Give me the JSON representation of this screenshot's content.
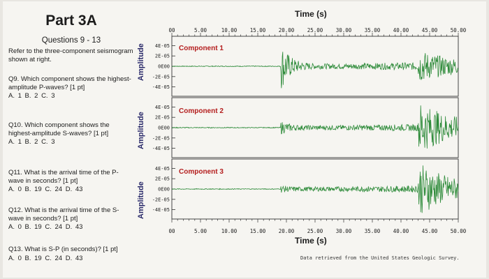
{
  "page": {
    "title": "Part 3A",
    "subtitle": "Questions 9 - 13",
    "intro": "Refer to the three-component seismogram shown at right."
  },
  "questions": [
    {
      "id": "q9",
      "text": "Q9. Which component shows the highest-amplitude P-waves? [1 pt]",
      "answers": "A. 1   B. 2   C. 3"
    },
    {
      "id": "q10",
      "text": "Q10. Which component shows the highest-amplitude S-waves? [1 pt]",
      "answers": "A. 1   B. 2   C. 3"
    },
    {
      "id": "q11",
      "text": "Q11. What is the arrival time of the P-wave in seconds? [1 pt]",
      "answers": "A. 0   B. 19   C. 24  D. 43"
    },
    {
      "id": "q12",
      "text": "Q12. What is the arrival time of the S-wave in seconds? [1 pt]",
      "answers": "A. 0   B. 19   C. 24  D. 43"
    },
    {
      "id": "q13",
      "text": "Q13. What is S-P (in seconds)? [1 pt]",
      "answers": "A. 0   B. 19   C. 24  D. 43"
    }
  ],
  "chart_data": {
    "type": "line",
    "xlabel": "Time (s)",
    "ylabel": "Amplitude",
    "xlim": [
      0,
      50
    ],
    "x_ticks": [
      "00",
      "5.00",
      "10.00",
      "15.00",
      "20.00",
      "25.00",
      "30.00",
      "35.00",
      "40.00",
      "45.00",
      "50.00"
    ],
    "y_ticks": [
      "4E-05",
      "2E-05",
      "0E00",
      "-2E-05",
      "-4E-05"
    ],
    "ylim": [
      -5e-05,
      5e-05
    ],
    "p_arrival_s": 19,
    "s_arrival_s": 43,
    "grid": false,
    "line_color": "#2e8b3a",
    "label_color": "#b41e1e",
    "series": [
      {
        "name": "Component 1",
        "p_amplitude": 4.5e-05,
        "s_amplitude": 2.5e-05
      },
      {
        "name": "Component 2",
        "p_amplitude": 1e-05,
        "s_amplitude": 4.5e-05
      },
      {
        "name": "Component 3",
        "p_amplitude": 4e-06,
        "s_amplitude": 4.5e-05
      }
    ],
    "source": "Data retrieved from the United States Geologic Survey."
  }
}
